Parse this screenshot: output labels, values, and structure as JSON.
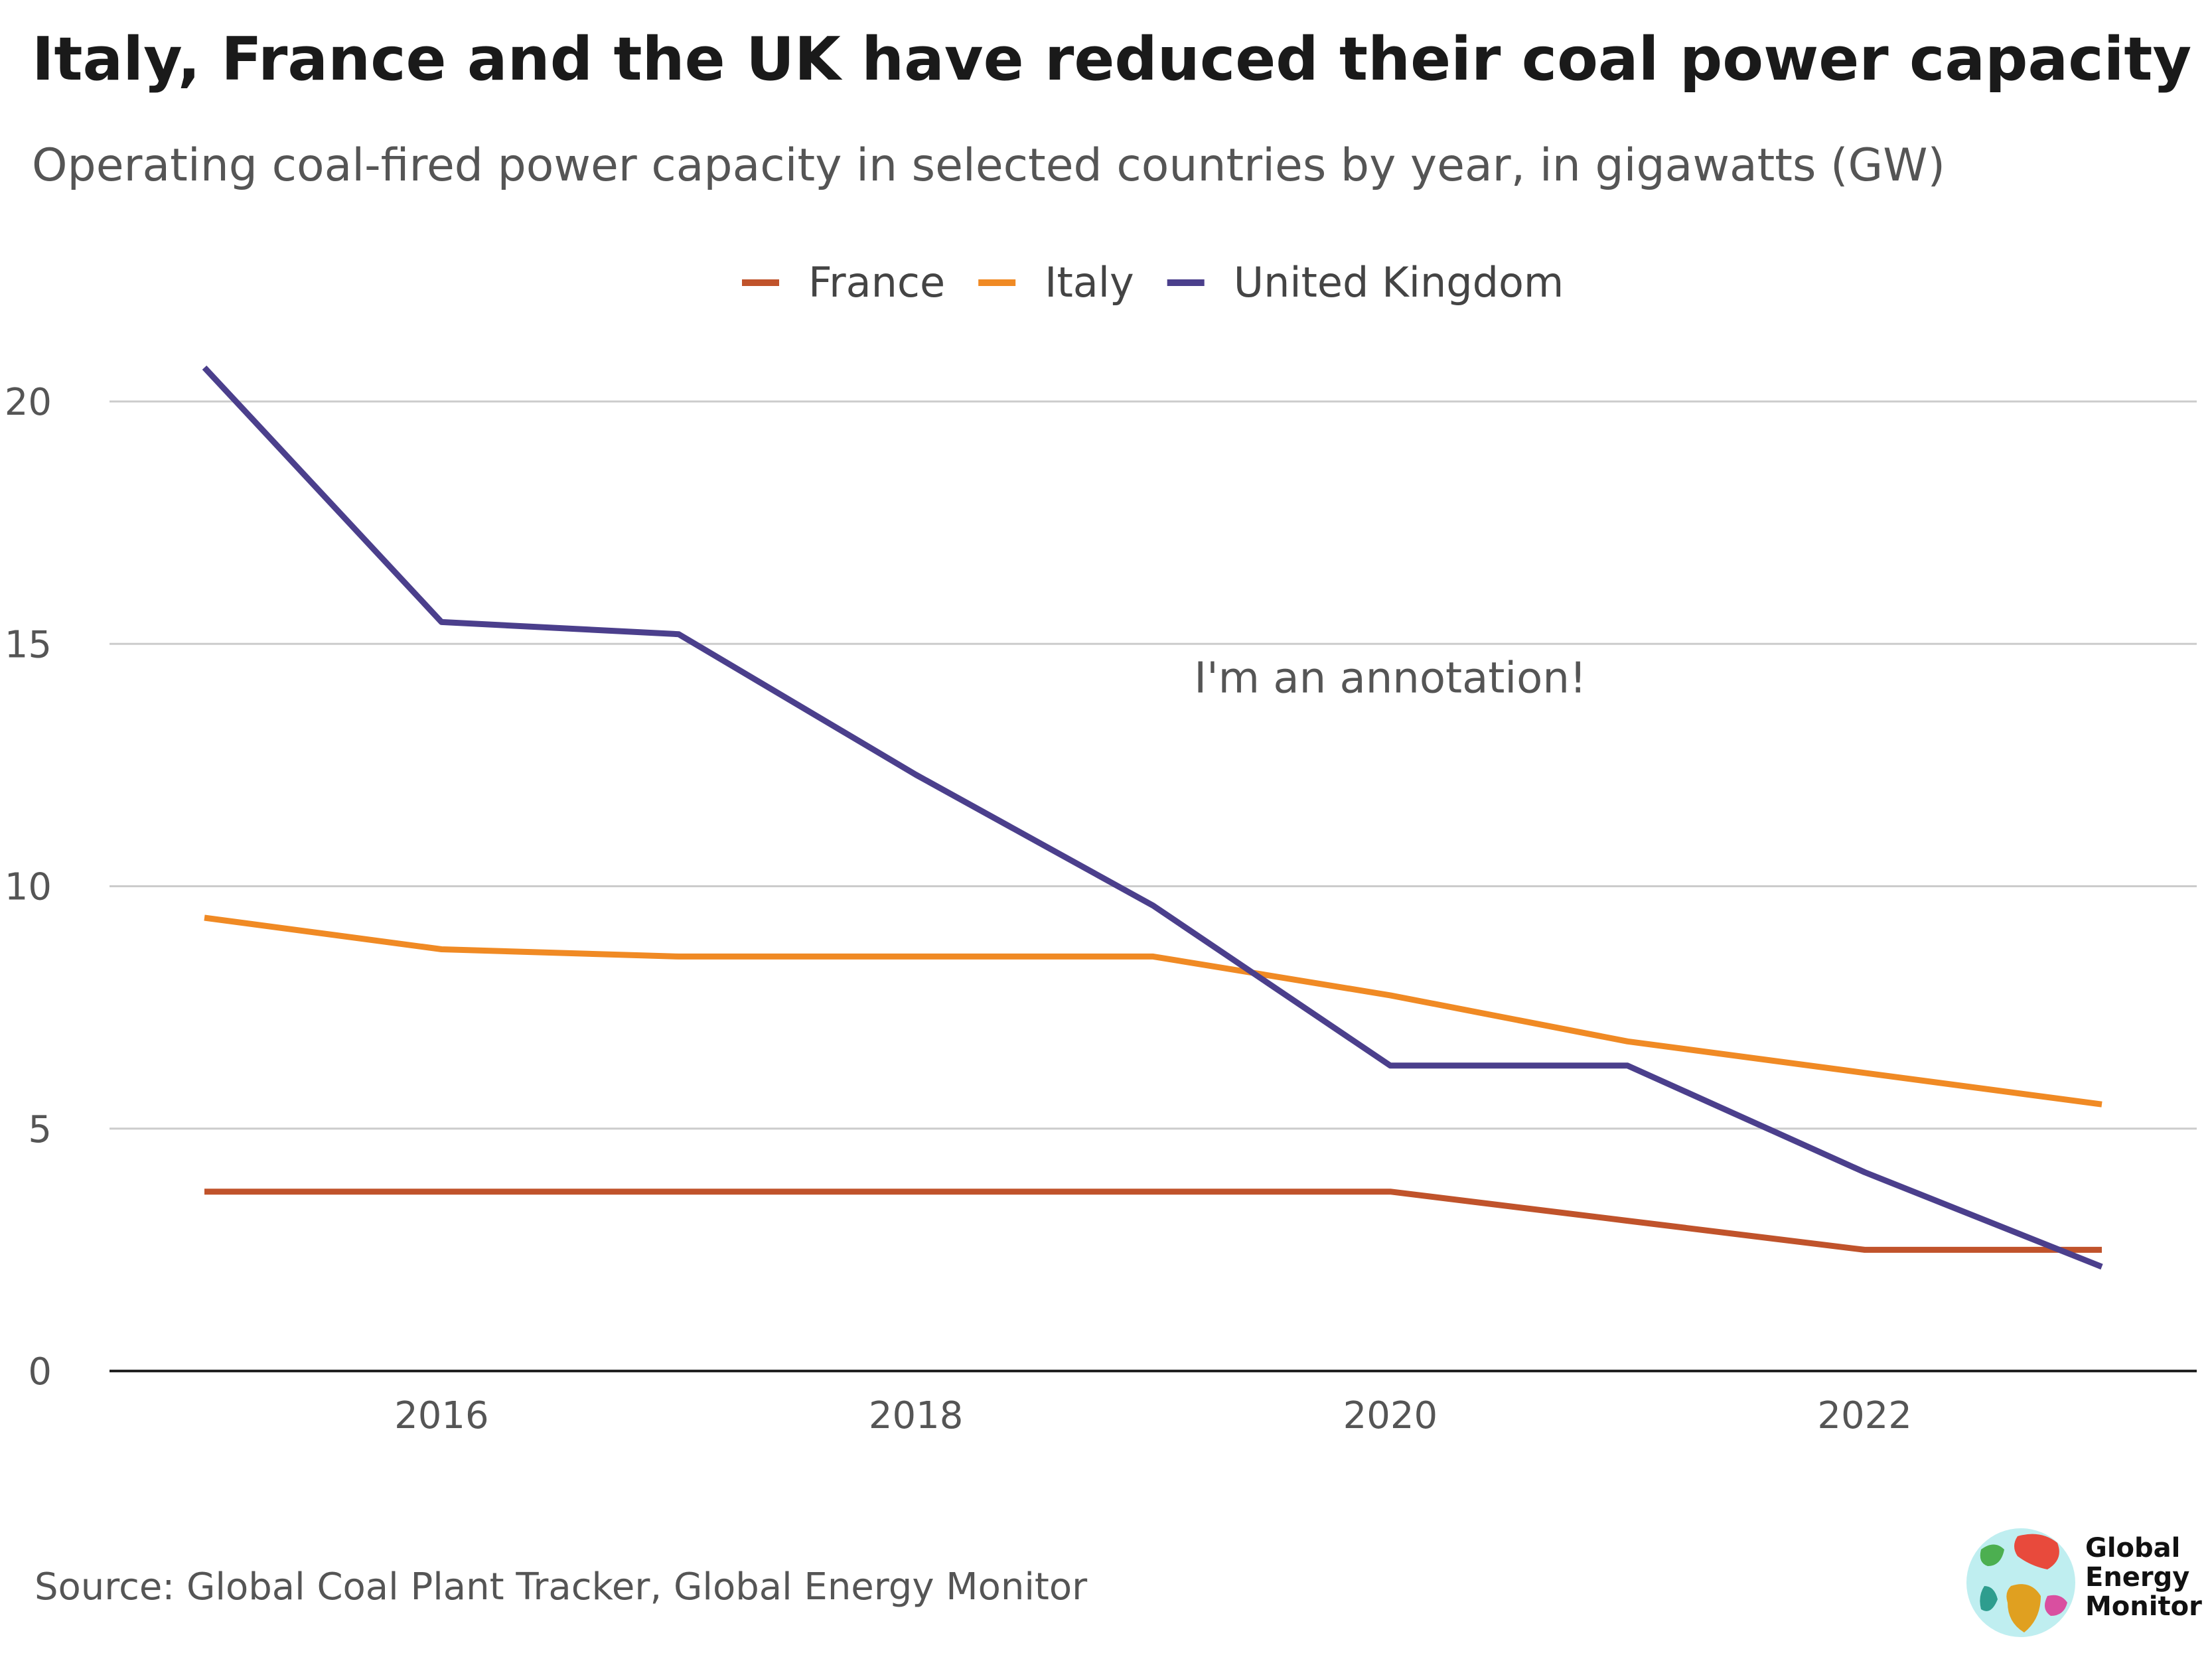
{
  "title": "Italy, France and the UK have reduced their coal power capacity",
  "subtitle": "Operating coal-fired power capacity in selected countries by year, in gigawatts (GW)",
  "annotation": "I'm an annotation!",
  "source": "Source: Global Coal Plant Tracker, Global Energy Monitor",
  "logo": {
    "line1": "Global",
    "line2": "Energy",
    "line3": "Monitor",
    "icon": "globe-icon"
  },
  "colors": {
    "france": "#c0532b",
    "italy": "#f08a24",
    "uk": "#4b3f8c",
    "grid": "#cccccc",
    "axis": "#222222"
  },
  "chart_data": {
    "type": "line",
    "title": "Italy, France and the UK have reduced their coal power capacity",
    "subtitle": "Operating coal-fired power capacity in selected countries by year, in gigawatts (GW)",
    "xlabel": "",
    "ylabel": "",
    "x": [
      2015,
      2016,
      2017,
      2018,
      2019,
      2020,
      2021,
      2022,
      2023
    ],
    "xlim": [
      2014.6,
      2023.4
    ],
    "ylim": [
      0,
      21
    ],
    "x_ticks": [
      "2016",
      "2018",
      "2020",
      "2022"
    ],
    "x_tick_values": [
      2016,
      2018,
      2020,
      2022
    ],
    "y_ticks": [
      "0",
      "5",
      "10",
      "15",
      "20"
    ],
    "y_tick_values": [
      0,
      5,
      10,
      15,
      20
    ],
    "grid": "horizontal",
    "legend_position": "top-center",
    "series": [
      {
        "name": "France",
        "color": "#c0532b",
        "values": [
          3.7,
          3.7,
          3.7,
          3.7,
          3.7,
          3.7,
          3.1,
          2.5,
          2.5
        ]
      },
      {
        "name": "Italy",
        "color": "#f08a24",
        "values": [
          9.35,
          8.7,
          8.55,
          8.55,
          8.55,
          7.75,
          6.8,
          6.15,
          5.5
        ]
      },
      {
        "name": "United Kingdom",
        "color": "#4b3f8c",
        "values": [
          20.7,
          15.45,
          15.2,
          12.3,
          9.6,
          6.3,
          6.3,
          4.1,
          2.15
        ]
      }
    ],
    "annotation": {
      "text": "I'm an annotation!",
      "x": 2020.0,
      "y": 14.3
    }
  }
}
